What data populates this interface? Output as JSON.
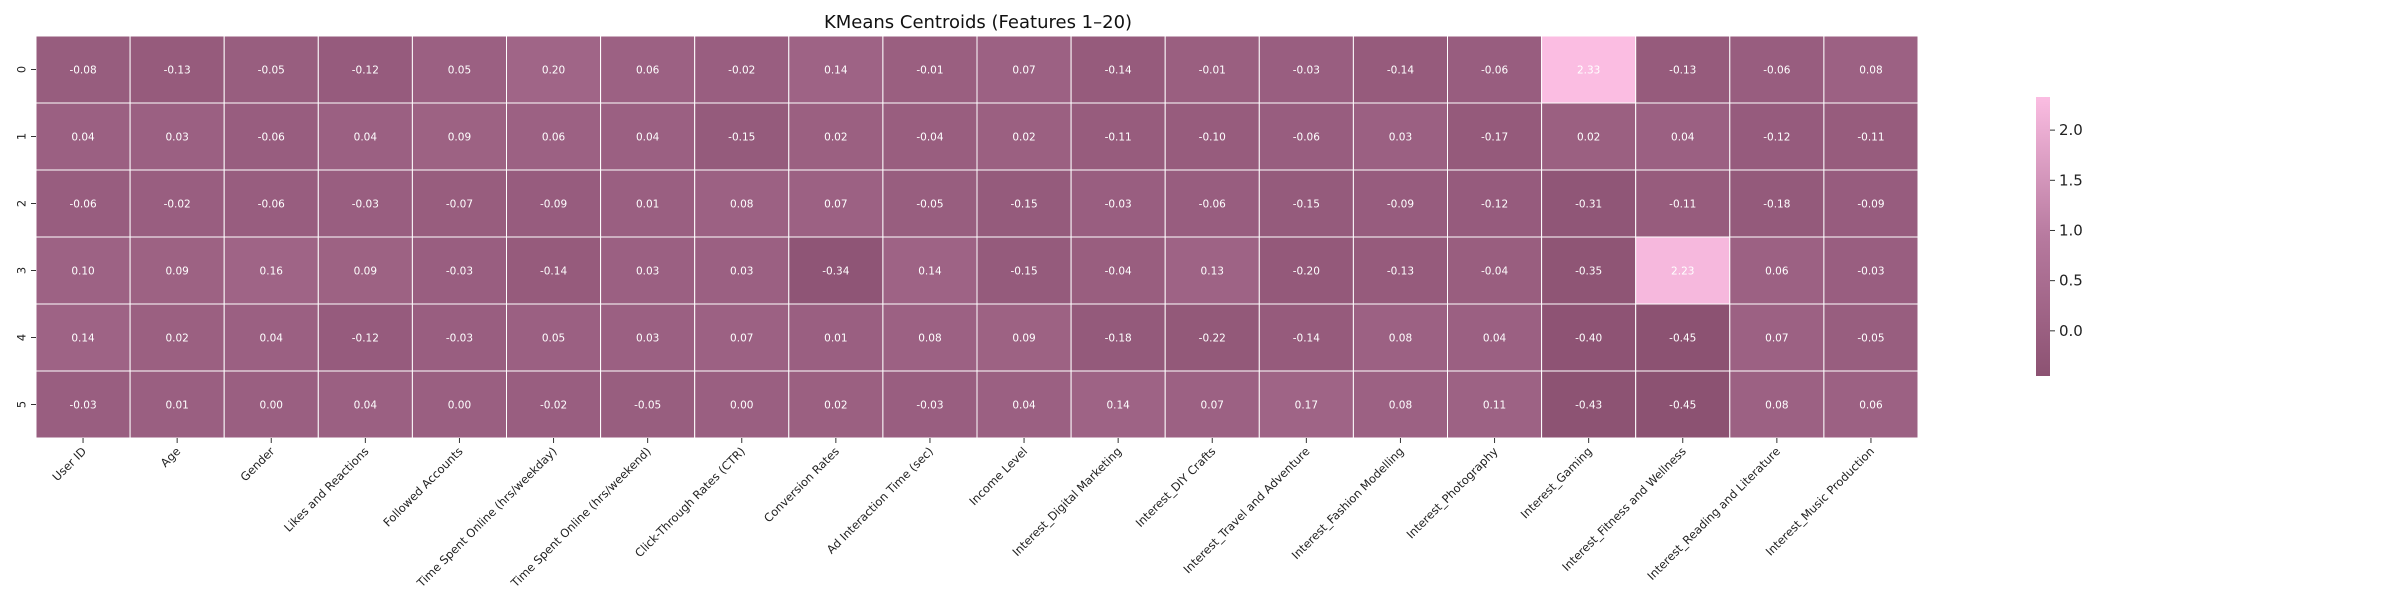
{
  "chart_data": {
    "type": "heatmap",
    "title": "KMeans Centroids (Features 1–20)",
    "xlabel": "",
    "ylabel": "",
    "rows": [
      "0",
      "1",
      "2",
      "3",
      "4",
      "5"
    ],
    "columns": [
      "User ID",
      "Age",
      "Gender",
      "Likes and Reactions",
      "Followed Accounts",
      "Time Spent Online (hrs/weekday)",
      "Time Spent Online (hrs/weekend)",
      "Click-Through Rates (CTR)",
      "Conversion Rates",
      "Ad Interaction Time (sec)",
      "Income Level",
      "Interest_Digital Marketing",
      "Interest_DIY Crafts",
      "Interest_Travel and Adventure",
      "Interest_Fashion Modelling",
      "Interest_Photography",
      "Interest_Gaming",
      "Interest_Fitness and Wellness",
      "Interest_Reading and Literature",
      "Interest_Music Production"
    ],
    "values": [
      [
        -0.08,
        -0.13,
        -0.05,
        -0.12,
        0.05,
        0.2,
        0.06,
        -0.02,
        0.14,
        -0.01,
        0.07,
        -0.14,
        -0.01,
        -0.03,
        -0.14,
        -0.06,
        2.33,
        -0.13,
        -0.06,
        0.08
      ],
      [
        0.04,
        0.03,
        -0.06,
        0.04,
        0.09,
        0.06,
        0.04,
        -0.15,
        0.02,
        -0.04,
        0.02,
        -0.11,
        -0.1,
        -0.06,
        0.03,
        -0.17,
        0.02,
        0.04,
        -0.12,
        -0.11
      ],
      [
        -0.06,
        -0.02,
        -0.06,
        -0.03,
        -0.07,
        -0.09,
        0.01,
        0.08,
        0.07,
        -0.05,
        -0.15,
        -0.03,
        -0.06,
        -0.15,
        -0.09,
        -0.12,
        -0.31,
        -0.11,
        -0.18,
        -0.09
      ],
      [
        0.1,
        0.09,
        0.16,
        0.09,
        -0.03,
        -0.14,
        0.03,
        0.03,
        -0.34,
        0.14,
        -0.15,
        -0.04,
        0.13,
        -0.2,
        -0.13,
        -0.04,
        -0.35,
        2.23,
        0.06,
        -0.03
      ],
      [
        0.14,
        0.02,
        0.04,
        -0.12,
        -0.03,
        0.05,
        0.03,
        0.07,
        0.01,
        0.08,
        0.09,
        -0.18,
        -0.22,
        -0.14,
        0.08,
        0.04,
        -0.4,
        -0.45,
        0.07,
        -0.05
      ],
      [
        -0.03,
        0.01,
        -0.0,
        0.04,
        -0.0,
        -0.02,
        -0.05,
        -0.0,
        0.02,
        -0.03,
        0.04,
        0.14,
        0.07,
        0.17,
        0.08,
        0.11,
        -0.43,
        -0.45,
        0.08,
        0.06
      ]
    ],
    "value_range": [
      -0.45,
      2.33
    ],
    "colorbar_ticks": [
      "0.0",
      "0.5",
      "1.0",
      "1.5",
      "2.0"
    ],
    "colormap": {
      "low": "#8c5272",
      "mid": "#b77a9f",
      "high": "#fbbde2"
    },
    "grid": true,
    "cell_border_color": "#ffffff",
    "colorbar_position": "right"
  }
}
